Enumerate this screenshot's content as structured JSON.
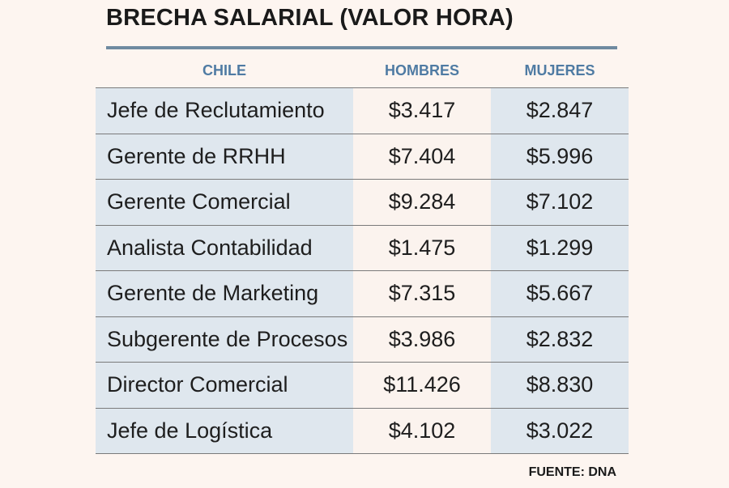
{
  "chart_data": {
    "type": "table",
    "title": "BRECHA SALARIAL (VALOR HORA)",
    "columns": [
      "CHILE",
      "HOMBRES",
      "MUJERES"
    ],
    "rows": [
      {
        "label": "Jefe de Reclutamiento",
        "hombres": "$3.417",
        "mujeres": "$2.847"
      },
      {
        "label": "Gerente de RRHH",
        "hombres": "$7.404",
        "mujeres": "$5.996"
      },
      {
        "label": "Gerente Comercial",
        "hombres": "$9.284",
        "mujeres": "$7.102"
      },
      {
        "label": "Analista Contabilidad",
        "hombres": "$1.475",
        "mujeres": "$1.299"
      },
      {
        "label": "Gerente de Marketing",
        "hombres": "$7.315",
        "mujeres": "$5.667"
      },
      {
        "label": "Subgerente de Procesos",
        "hombres": "$3.986",
        "mujeres": "$2.832"
      },
      {
        "label": "Director Comercial",
        "hombres": "$11.426",
        "mujeres": "$8.830"
      },
      {
        "label": "Jefe de Logística",
        "hombres": "$4.102",
        "mujeres": "$3.022"
      }
    ],
    "source": "FUENTE: DNA"
  },
  "colors": {
    "background": "#fdf5f0",
    "header_text": "#4f7ba3",
    "shaded_column": "#dfe7ee",
    "rule": "#6f8aa0"
  }
}
